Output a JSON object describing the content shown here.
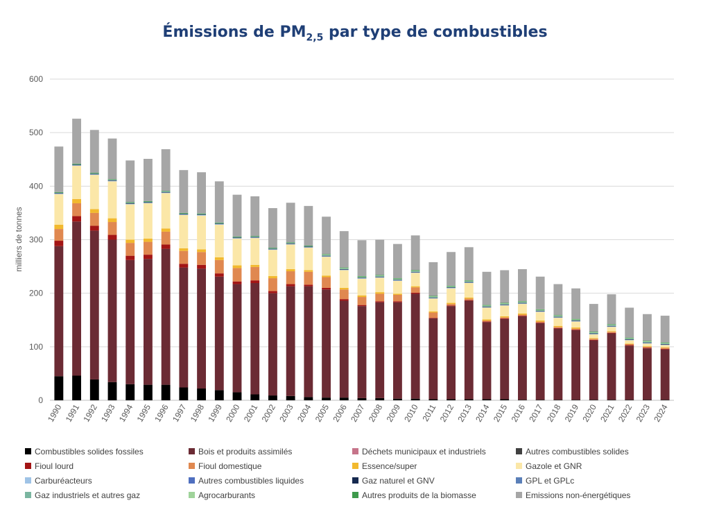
{
  "title": {
    "main": "Émissions de PM",
    "sub": "2,5",
    "rest": " par type de combustibles"
  },
  "chart_data": {
    "type": "bar",
    "stacked": true,
    "ylabel": "milliers de tonnes",
    "ylim": [
      0,
      600
    ],
    "yticks": [
      0,
      100,
      200,
      300,
      400,
      500,
      600
    ],
    "grid": true,
    "legend_position": "bottom",
    "categories": [
      "1990",
      "1991",
      "1992",
      "1993",
      "1994",
      "1995",
      "1996",
      "1997",
      "1998",
      "1999",
      "2000",
      "2001",
      "2002",
      "2003",
      "2004",
      "2005",
      "2006",
      "2007",
      "2008",
      "2009",
      "2010",
      "2011",
      "2012",
      "2013",
      "2014",
      "2015",
      "2016",
      "2017",
      "2018",
      "2019",
      "2020",
      "2021",
      "2022",
      "2023",
      "2024"
    ],
    "series": [
      {
        "name": "Combustibles solides fossiles",
        "color": "#000000",
        "values": [
          45,
          46,
          39,
          34,
          30,
          29,
          29,
          24,
          22,
          19,
          15,
          11,
          9,
          8,
          6,
          5,
          5,
          4,
          4,
          3,
          3,
          2,
          2,
          2,
          2,
          2,
          1,
          1,
          1,
          1,
          1,
          1,
          1,
          1,
          1
        ]
      },
      {
        "name": "Bois et produits assimilés",
        "color": "#6b2b34",
        "values": [
          243,
          288,
          278,
          266,
          232,
          235,
          254,
          224,
          224,
          212,
          202,
          208,
          191,
          205,
          207,
          202,
          181,
          172,
          179,
          180,
          196,
          151,
          174,
          184,
          144,
          150,
          156,
          143,
          133,
          130,
          111,
          124,
          101,
          96,
          94
        ]
      },
      {
        "name": "Déchets municipaux et industriels",
        "color": "#c6748a",
        "values": [
          0,
          0,
          0,
          0,
          0,
          0,
          0,
          0,
          0,
          0,
          0,
          0,
          0,
          0,
          0,
          0,
          0,
          0,
          0,
          0,
          0,
          0,
          0,
          0,
          0,
          0,
          0,
          0,
          0,
          0,
          0,
          0,
          0,
          0,
          0
        ]
      },
      {
        "name": "Autres combustibles solides",
        "color": "#404040",
        "values": [
          0,
          0,
          0,
          0,
          0,
          0,
          0,
          0,
          0,
          0,
          0,
          0,
          0,
          0,
          0,
          0,
          0,
          0,
          0,
          0,
          0,
          0,
          0,
          0,
          0,
          0,
          0,
          0,
          0,
          0,
          0,
          0,
          0,
          0,
          0
        ]
      },
      {
        "name": "Fioul lourd",
        "color": "#a31515",
        "values": [
          10,
          10,
          9,
          9,
          8,
          8,
          8,
          7,
          7,
          6,
          5,
          5,
          4,
          4,
          3,
          3,
          3,
          2,
          2,
          2,
          2,
          1,
          1,
          1,
          1,
          1,
          1,
          1,
          1,
          1,
          1,
          1,
          1,
          1,
          1
        ]
      },
      {
        "name": "Fioul domestique",
        "color": "#e08850",
        "values": [
          22,
          24,
          24,
          24,
          24,
          24,
          24,
          24,
          24,
          25,
          25,
          25,
          24,
          24,
          24,
          20,
          18,
          15,
          14,
          12,
          10,
          10,
          3,
          3,
          2,
          2,
          2,
          2,
          2,
          2,
          2,
          2,
          2,
          2,
          2
        ]
      },
      {
        "name": "Essence/super",
        "color": "#f2b92e",
        "values": [
          8,
          8,
          7,
          7,
          6,
          6,
          6,
          5,
          5,
          5,
          5,
          4,
          4,
          4,
          3,
          3,
          3,
          3,
          3,
          2,
          2,
          2,
          2,
          2,
          2,
          2,
          2,
          2,
          2,
          2,
          1,
          1,
          1,
          1,
          1
        ]
      },
      {
        "name": "Gazole et GNR",
        "color": "#fbe7a8",
        "values": [
          57,
          62,
          64,
          69,
          66,
          66,
          66,
          62,
          63,
          61,
          50,
          50,
          49,
          46,
          42,
          35,
          33,
          31,
          27,
          24,
          25,
          24,
          27,
          27,
          22,
          20,
          18,
          16,
          15,
          11,
          7,
          8,
          6,
          5,
          4
        ]
      },
      {
        "name": "Carburéacteurs",
        "color": "#9fc3e6",
        "values": [
          1,
          1,
          1,
          1,
          1,
          1,
          1,
          1,
          1,
          1,
          1,
          1,
          1,
          1,
          1,
          1,
          1,
          1,
          1,
          1,
          1,
          1,
          1,
          1,
          1,
          1,
          1,
          1,
          1,
          1,
          1,
          1,
          1,
          1,
          1
        ]
      },
      {
        "name": "Autres combustibles liquides",
        "color": "#4f6fbf",
        "values": [
          0,
          0,
          0,
          0,
          0,
          0,
          0,
          0,
          0,
          0,
          0,
          0,
          0,
          0,
          0,
          0,
          0,
          0,
          0,
          0,
          0,
          0,
          0,
          0,
          0,
          0,
          0,
          0,
          0,
          0,
          0,
          0,
          0,
          0,
          0
        ]
      },
      {
        "name": "Gaz naturel et GNV",
        "color": "#16294f",
        "values": [
          1,
          1,
          1,
          1,
          1,
          1,
          1,
          1,
          1,
          1,
          1,
          1,
          1,
          1,
          1,
          1,
          1,
          1,
          1,
          1,
          1,
          1,
          1,
          1,
          1,
          1,
          1,
          1,
          1,
          1,
          1,
          1,
          1,
          1,
          1
        ]
      },
      {
        "name": "GPL et GPLc",
        "color": "#5a7fb8",
        "values": [
          0,
          0,
          0,
          0,
          0,
          0,
          0,
          0,
          0,
          0,
          0,
          0,
          0,
          0,
          0,
          0,
          0,
          0,
          0,
          0,
          0,
          0,
          0,
          0,
          0,
          0,
          0,
          0,
          0,
          0,
          0,
          0,
          0,
          0,
          0
        ]
      },
      {
        "name": "Gaz industriels et autres gaz",
        "color": "#7ab5a0",
        "values": [
          1,
          1,
          1,
          1,
          1,
          1,
          1,
          1,
          1,
          1,
          1,
          1,
          1,
          1,
          1,
          1,
          1,
          1,
          1,
          1,
          1,
          1,
          1,
          1,
          1,
          1,
          1,
          1,
          1,
          1,
          1,
          1,
          1,
          1,
          1
        ]
      },
      {
        "name": "Agrocarburants",
        "color": "#9fd39a",
        "values": [
          0,
          0,
          0,
          0,
          0,
          0,
          0,
          0,
          0,
          0,
          0,
          0,
          0,
          0,
          0,
          1,
          1,
          1,
          1,
          1,
          1,
          1,
          1,
          1,
          1,
          1,
          1,
          1,
          1,
          1,
          1,
          1,
          1,
          1,
          1
        ]
      },
      {
        "name": "Autres produits de la biomasse",
        "color": "#3e9a4c",
        "values": [
          1,
          1,
          1,
          1,
          1,
          1,
          1,
          1,
          1,
          1,
          1,
          1,
          1,
          1,
          1,
          1,
          1,
          1,
          1,
          1,
          1,
          1,
          1,
          1,
          1,
          1,
          1,
          1,
          1,
          1,
          1,
          1,
          1,
          1,
          1
        ]
      },
      {
        "name": "Emissions non-énergétiques",
        "color": "#a6a6a6",
        "values": [
          85,
          84,
          80,
          76,
          78,
          79,
          78,
          80,
          77,
          77,
          78,
          74,
          74,
          74,
          74,
          70,
          68,
          67,
          66,
          64,
          65,
          63,
          63,
          62,
          62,
          61,
          60,
          61,
          58,
          57,
          52,
          56,
          56,
          50,
          50
        ]
      }
    ]
  }
}
